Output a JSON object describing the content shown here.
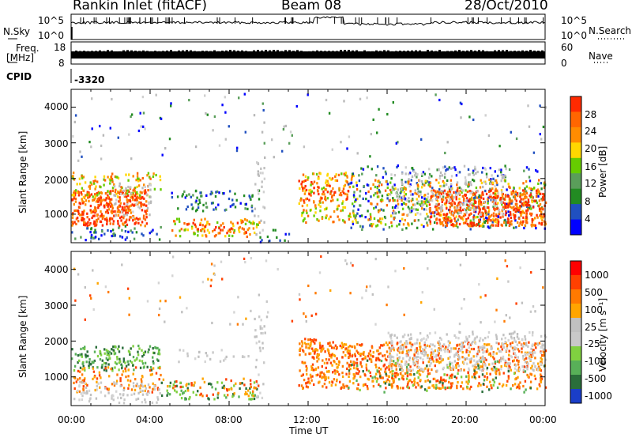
{
  "header": {
    "station": "Rankin Inlet (fitACF)",
    "beam": "Beam 08",
    "date": "28/Oct/2010"
  },
  "top_panels": {
    "nsky_label": "N.Sky",
    "nsky_ticks": [
      "10^5",
      "10^0"
    ],
    "nsearch_label": "N.Search",
    "nsearch_ticks": [
      "10^5",
      "10^0"
    ],
    "freq_label_1": "Freq.",
    "freq_label_2": "[MHz]",
    "freq_ticks": [
      "18",
      "8"
    ],
    "nave_label": "Nave",
    "nave_ticks": [
      "60",
      "0"
    ],
    "cpid_label": "CPID",
    "cpid_value": "-3320"
  },
  "colors": {
    "power": [
      "#0000ff",
      "#2050c0",
      "#228b22",
      "#5a9e5a",
      "#66cc00",
      "#ffd700",
      "#ff8c00",
      "#ff6600",
      "#ff2a00"
    ],
    "velocity": [
      "#1a3ec8",
      "#2a6e3a",
      "#58b058",
      "#80d040",
      "#c8c8c8",
      "#c0c0c0",
      "#ffa500",
      "#ff7a00",
      "#ff4000",
      "#ff0000"
    ]
  },
  "chart_data": [
    {
      "type": "heatmap",
      "panel": "power",
      "xlabel": "Time UT",
      "ylabel": "Slant Range [km]",
      "x_ticks": [
        "00:00",
        "04:00",
        "08:00",
        "12:00",
        "16:00",
        "20:00",
        "00:00"
      ],
      "xlim_hours": [
        0,
        24
      ],
      "y_ticks": [
        "1000",
        "2000",
        "3000",
        "4000"
      ],
      "ylim_km": [
        200,
        4500
      ],
      "colorbar_label": "Power [dB]",
      "colorbar_ticks": [
        "28",
        "24",
        "20",
        "16",
        "12",
        "8",
        "4"
      ],
      "colorbar_range": [
        0,
        30
      ]
    },
    {
      "type": "heatmap",
      "panel": "velocity",
      "xlabel": "Time UT",
      "ylabel": "Slant Range [km]",
      "x_ticks": [
        "00:00",
        "04:00",
        "08:00",
        "12:00",
        "16:00",
        "20:00",
        "00:00"
      ],
      "xlim_hours": [
        0,
        24
      ],
      "y_ticks": [
        "1000",
        "2000",
        "3000",
        "4000"
      ],
      "ylim_km": [
        200,
        4500
      ],
      "colorbar_label": "Velocity [m s⁻¹]",
      "colorbar_ticks": [
        "1000",
        "500",
        "100",
        "25",
        "-25",
        "-100",
        "-500",
        "-1000"
      ]
    }
  ]
}
